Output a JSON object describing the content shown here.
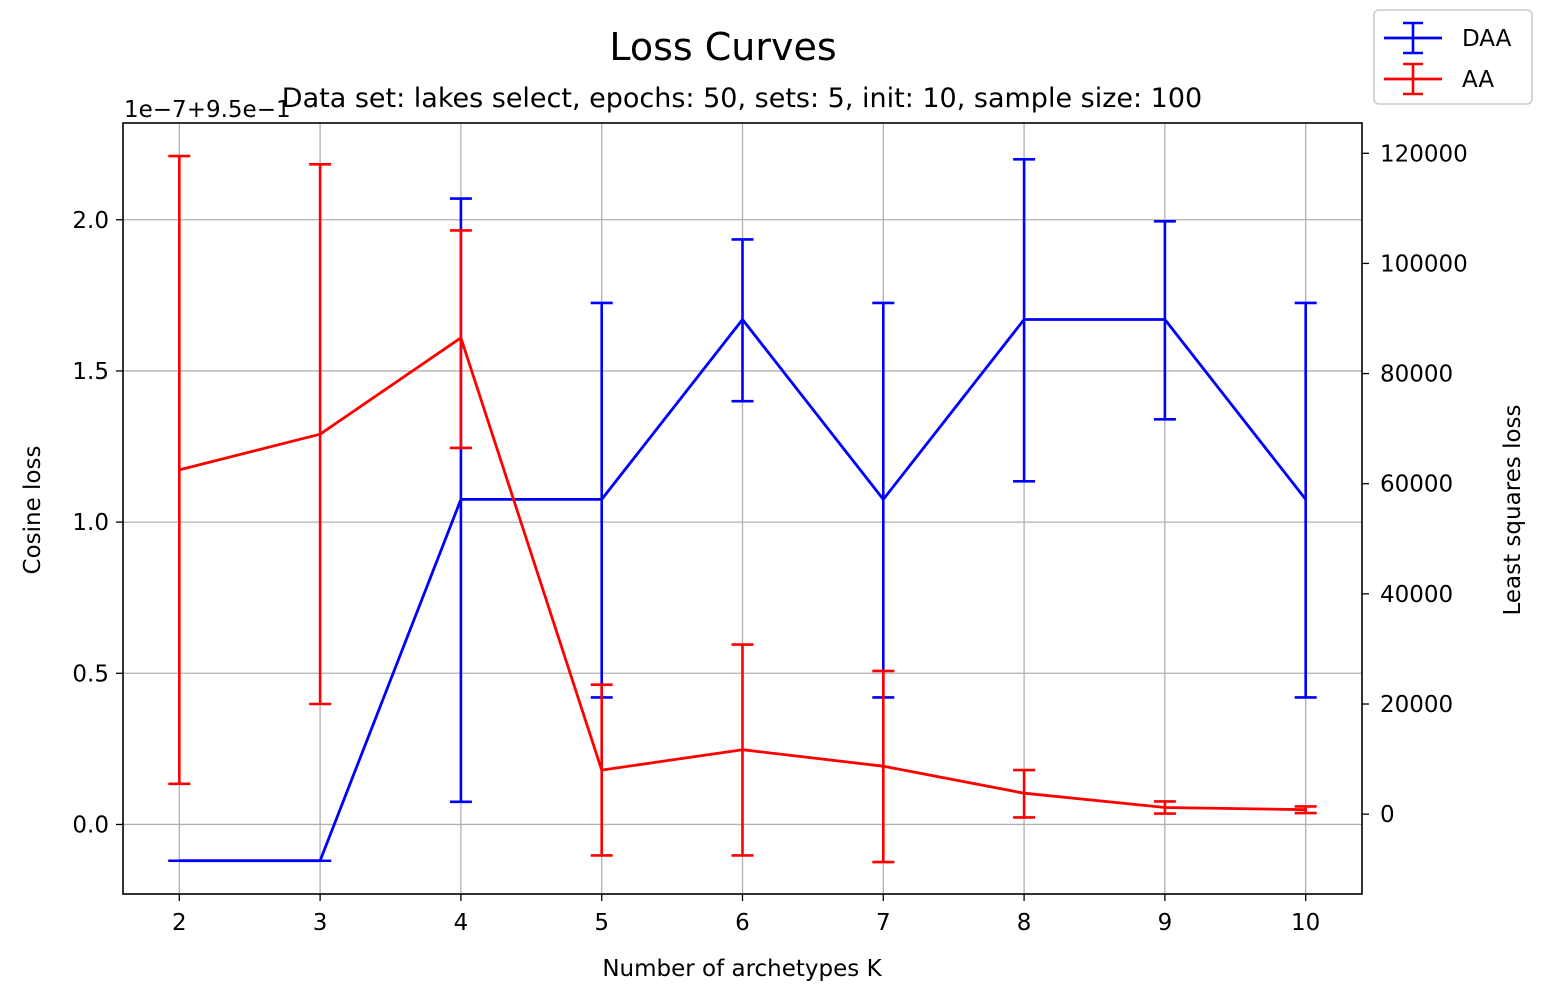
{
  "chart_data": {
    "type": "line",
    "title": "Loss Curves",
    "subtitle": "Data set:  lakes select, epochs: 50, sets: 5, init: 10, sample size: 100",
    "xlabel": "Number of archetypes K",
    "ylabel_left": "Cosine loss",
    "ylabel_right": "Least squares loss",
    "offset_label": "1e−7+9.5e−1",
    "x": [
      2,
      3,
      4,
      5,
      6,
      7,
      8,
      9,
      10
    ],
    "x_ticks": [
      "2",
      "3",
      "4",
      "5",
      "6",
      "7",
      "8",
      "9",
      "10"
    ],
    "xlim": [
      1.6,
      10.4
    ],
    "ylim_left": [
      -0.23,
      2.32
    ],
    "y_ticks_left": [
      "0.0",
      "0.5",
      "1.0",
      "1.5",
      "2.0"
    ],
    "ylim_right": [
      -14500,
      125500
    ],
    "y_ticks_right": [
      "0",
      "20000",
      "40000",
      "60000",
      "80000",
      "100000",
      "120000"
    ],
    "grid": true,
    "legend_position": "top-right",
    "series": [
      {
        "name": "DAA",
        "axis": "left",
        "color": "#0000ff",
        "values": [
          -0.12,
          -0.12,
          1.075,
          1.075,
          1.67,
          1.075,
          1.67,
          1.67,
          1.075
        ],
        "err_low": [
          -0.12,
          -0.12,
          0.075,
          0.42,
          1.4,
          0.42,
          1.135,
          1.34,
          0.42
        ],
        "err_high": [
          -0.12,
          -0.12,
          2.07,
          1.725,
          1.935,
          1.725,
          2.2,
          1.995,
          1.725
        ]
      },
      {
        "name": "AA",
        "axis": "right",
        "color": "#ff0000",
        "values": [
          62500,
          69000,
          86500,
          8000,
          11700,
          8700,
          3800,
          1200,
          800
        ],
        "err_low": [
          5500,
          20000,
          66500,
          -7500,
          -7500,
          -8700,
          -600,
          100,
          200
        ],
        "err_high": [
          119500,
          118000,
          106000,
          23500,
          30800,
          26000,
          8000,
          2300,
          1400
        ]
      }
    ]
  }
}
